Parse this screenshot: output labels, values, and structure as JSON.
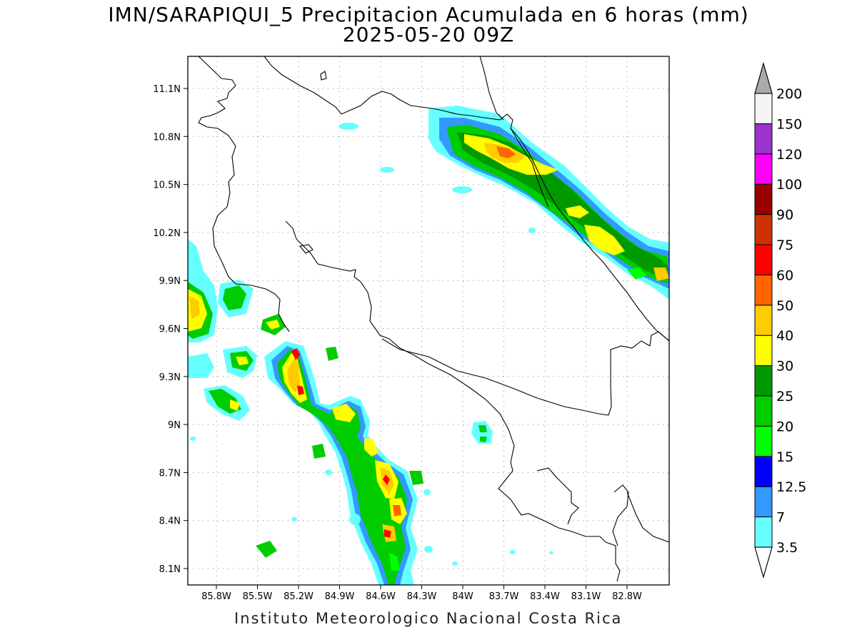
{
  "title_line1": "IMN/SARAPIQUI_5 Precipitacion Acumulada en 6 horas (mm)",
  "title_line2": "2025-05-20 09Z",
  "footer": "Instituto Meteorologico Nacional Costa Rica",
  "map": {
    "lat_labels": [
      "11.1N",
      "10.8N",
      "10.5N",
      "10.2N",
      "9.9N",
      "9.6N",
      "9.3N",
      "9N",
      "8.7N",
      "8.4N",
      "8.1N"
    ],
    "lon_labels": [
      "85.8W",
      "85.5W",
      "85.2W",
      "84.9W",
      "84.6W",
      "84.3W",
      "84W",
      "83.7W",
      "83.4W",
      "83.1W",
      "82.8W"
    ],
    "grid": true
  },
  "legend": {
    "levels": [
      "3.5",
      "7",
      "12.5",
      "15",
      "20",
      "25",
      "30",
      "40",
      "50",
      "60",
      "75",
      "90",
      "100",
      "120",
      "150",
      "200"
    ],
    "colors": [
      "#66ffff",
      "#3399ff",
      "#0000ff",
      "#00ff00",
      "#00cc00",
      "#009900",
      "#ffff00",
      "#ffcc00",
      "#ff6600",
      "#ff0000",
      "#cc3300",
      "#990000",
      "#ff00ff",
      "#9933cc",
      "#f5f5f5",
      "#aaaaaa"
    ],
    "over_color": "#aaaaaa"
  }
}
